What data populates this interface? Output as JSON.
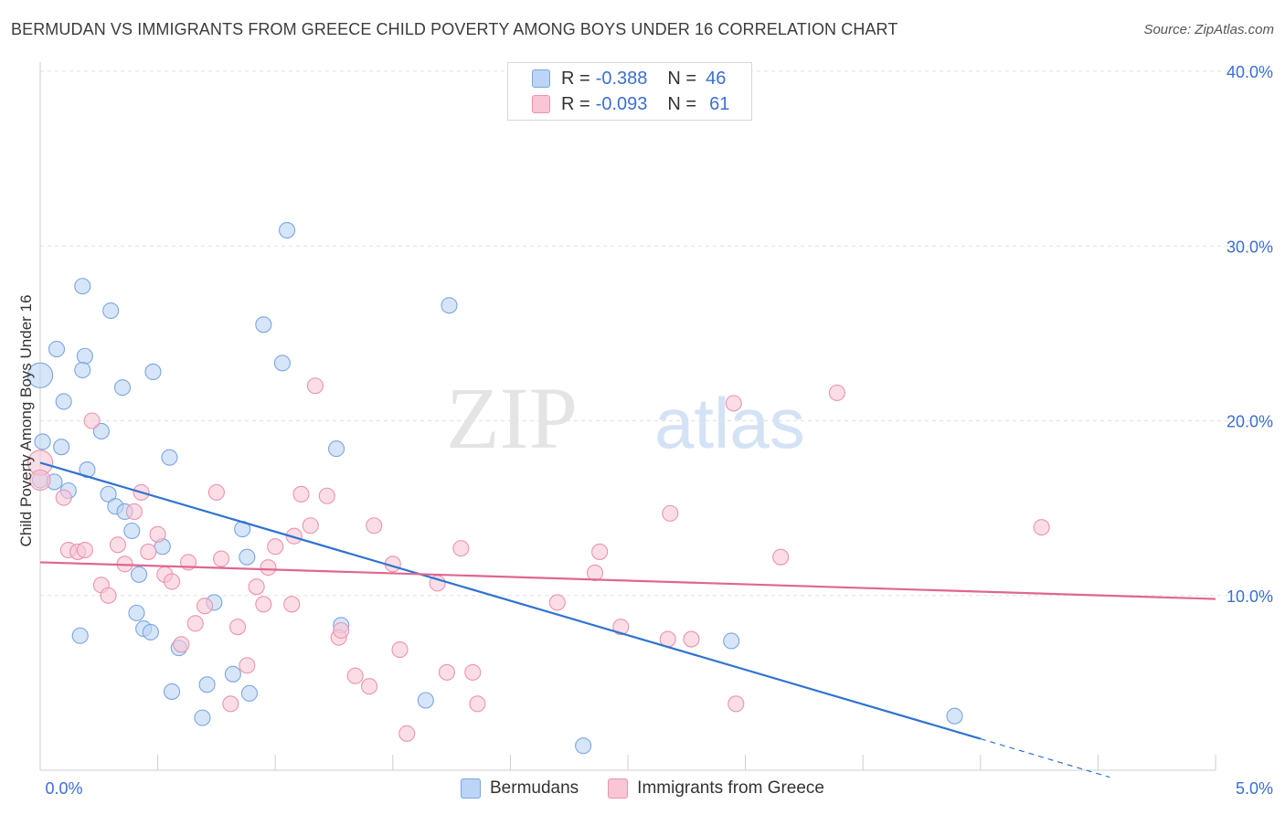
{
  "title": "BERMUDAN VS IMMIGRANTS FROM GREECE CHILD POVERTY AMONG BOYS UNDER 16 CORRELATION CHART",
  "source": "Source: ZipAtlas.com",
  "watermark": {
    "zip": "ZIP",
    "atlas": "atlas"
  },
  "colors": {
    "blue_fill": "#bcd4f5",
    "blue_stroke": "#7aa6e0",
    "blue_line": "#2f73d0",
    "pink_fill": "#f8c6d5",
    "pink_stroke": "#eb94ae",
    "pink_line": "#e0668e",
    "axis_text": "#3b6fd1",
    "grid": "#e2e2e2"
  },
  "legend": {
    "series1": {
      "r_label": "R =",
      "r_value": "-0.388",
      "n_label": "N =",
      "n_value": "46"
    },
    "series2": {
      "r_label": "R =",
      "r_value": "-0.093",
      "n_label": "N =",
      "n_value": "61"
    }
  },
  "bottom_legend": [
    "Bermudans",
    "Immigrants from Greece"
  ],
  "chart_data": {
    "type": "scatter",
    "title": "BERMUDAN VS IMMIGRANTS FROM GREECE CHILD POVERTY AMONG BOYS UNDER 16 CORRELATION CHART",
    "xlabel": "",
    "ylabel": "Child Poverty Among Boys Under 16",
    "xlim": [
      0,
      5
    ],
    "ylim": [
      0,
      40
    ],
    "x_tick_labels": [
      "0.0%",
      "5.0%"
    ],
    "y_tick_labels": [
      "10.0%",
      "20.0%",
      "30.0%",
      "40.0%"
    ],
    "y_ticks": [
      10,
      20,
      30,
      40
    ],
    "x_ticks": [
      0,
      0.5,
      1.0,
      1.5,
      2.0,
      2.5,
      3.0,
      3.5,
      4.0,
      4.5,
      5.0
    ],
    "series": [
      {
        "name": "Bermudans",
        "color": "blue",
        "trend": {
          "x0": 0.0,
          "y0": 17.6,
          "x1": 4.0,
          "y1": 1.8,
          "dash_to_x": 4.55,
          "dash_to_y": -0.4
        },
        "points": [
          [
            0.0,
            22.6,
            1.6
          ],
          [
            0.01,
            18.8,
            1
          ],
          [
            0.07,
            24.1,
            1
          ],
          [
            0.1,
            21.1,
            1
          ],
          [
            0.18,
            27.7,
            1
          ],
          [
            0.19,
            23.7,
            1
          ],
          [
            0.3,
            26.3,
            1
          ],
          [
            0.35,
            21.9,
            1
          ],
          [
            0.48,
            22.8,
            1
          ],
          [
            0.18,
            22.9,
            1
          ],
          [
            0.09,
            18.5,
            1
          ],
          [
            0.26,
            19.4,
            1
          ],
          [
            0.2,
            17.2,
            1
          ],
          [
            0.06,
            16.5,
            1
          ],
          [
            0.12,
            16.0,
            1
          ],
          [
            0.29,
            15.8,
            1
          ],
          [
            0.32,
            15.1,
            1
          ],
          [
            0.36,
            14.8,
            1
          ],
          [
            0.39,
            13.7,
            1
          ],
          [
            0.52,
            12.8,
            1
          ],
          [
            0.42,
            11.2,
            1
          ],
          [
            0.41,
            9.0,
            1
          ],
          [
            0.44,
            8.1,
            1
          ],
          [
            0.47,
            7.9,
            1
          ],
          [
            0.59,
            7.0,
            1
          ],
          [
            0.17,
            7.7,
            1
          ],
          [
            0.56,
            4.5,
            1
          ],
          [
            0.71,
            4.9,
            1
          ],
          [
            0.82,
            5.5,
            1
          ],
          [
            0.89,
            4.4,
            1
          ],
          [
            0.69,
            3.0,
            1
          ],
          [
            0.74,
            9.6,
            1
          ],
          [
            0.95,
            25.5,
            1
          ],
          [
            1.03,
            23.3,
            1
          ],
          [
            1.05,
            30.9,
            1
          ],
          [
            0.55,
            17.9,
            1
          ],
          [
            1.26,
            18.4,
            1
          ],
          [
            0.86,
            13.8,
            1
          ],
          [
            0.88,
            12.2,
            1
          ],
          [
            1.28,
            8.3,
            1
          ],
          [
            1.64,
            4.0,
            1
          ],
          [
            1.74,
            26.6,
            1
          ],
          [
            2.31,
            1.4,
            1
          ],
          [
            2.94,
            7.4,
            1
          ],
          [
            3.89,
            3.1,
            1
          ],
          [
            0.0,
            16.6,
            1
          ]
        ]
      },
      {
        "name": "Immigrants from Greece",
        "color": "pink",
        "trend": {
          "x0": 0.0,
          "y0": 11.9,
          "x1": 5.0,
          "y1": 9.8
        },
        "points": [
          [
            0.0,
            17.6,
            1.6
          ],
          [
            0.0,
            16.6,
            1.3
          ],
          [
            0.1,
            15.6,
            1
          ],
          [
            0.22,
            20.0,
            1
          ],
          [
            0.12,
            12.6,
            1
          ],
          [
            0.16,
            12.5,
            1
          ],
          [
            0.19,
            12.6,
            1
          ],
          [
            0.26,
            10.6,
            1
          ],
          [
            0.29,
            10.0,
            1
          ],
          [
            0.33,
            12.9,
            1
          ],
          [
            0.36,
            11.8,
            1
          ],
          [
            0.4,
            14.8,
            1
          ],
          [
            0.43,
            15.9,
            1
          ],
          [
            0.46,
            12.5,
            1
          ],
          [
            0.5,
            13.5,
            1
          ],
          [
            0.53,
            11.2,
            1
          ],
          [
            0.56,
            10.8,
            1
          ],
          [
            0.6,
            7.2,
            1
          ],
          [
            0.63,
            11.9,
            1
          ],
          [
            0.66,
            8.4,
            1
          ],
          [
            0.7,
            9.4,
            1
          ],
          [
            0.75,
            15.9,
            1
          ],
          [
            0.77,
            12.1,
            1
          ],
          [
            0.81,
            3.8,
            1
          ],
          [
            0.84,
            8.2,
            1
          ],
          [
            0.88,
            6.0,
            1
          ],
          [
            0.92,
            10.5,
            1
          ],
          [
            0.95,
            9.5,
            1
          ],
          [
            0.97,
            11.6,
            1
          ],
          [
            1.0,
            12.8,
            1
          ],
          [
            1.07,
            9.5,
            1
          ],
          [
            1.08,
            13.4,
            1
          ],
          [
            1.11,
            15.8,
            1
          ],
          [
            1.15,
            14.0,
            1
          ],
          [
            1.17,
            22.0,
            1
          ],
          [
            1.22,
            15.7,
            1
          ],
          [
            1.27,
            7.6,
            1
          ],
          [
            1.28,
            8.0,
            1
          ],
          [
            1.34,
            5.4,
            1
          ],
          [
            1.4,
            4.8,
            1
          ],
          [
            1.42,
            14.0,
            1
          ],
          [
            1.5,
            11.8,
            1
          ],
          [
            1.53,
            6.9,
            1
          ],
          [
            1.56,
            2.1,
            1
          ],
          [
            1.69,
            10.7,
            1
          ],
          [
            1.73,
            5.6,
            1
          ],
          [
            1.79,
            12.7,
            1
          ],
          [
            1.84,
            5.6,
            1
          ],
          [
            1.86,
            3.8,
            1
          ],
          [
            2.2,
            9.6,
            1
          ],
          [
            2.36,
            11.3,
            1
          ],
          [
            2.38,
            12.5,
            1
          ],
          [
            2.47,
            8.2,
            1
          ],
          [
            2.67,
            7.5,
            1
          ],
          [
            2.68,
            14.7,
            1
          ],
          [
            2.77,
            7.5,
            1
          ],
          [
            2.95,
            21.0,
            1
          ],
          [
            2.96,
            3.8,
            1
          ],
          [
            3.15,
            12.2,
            1
          ],
          [
            3.39,
            21.6,
            1
          ],
          [
            4.26,
            13.9,
            1
          ]
        ]
      }
    ]
  }
}
